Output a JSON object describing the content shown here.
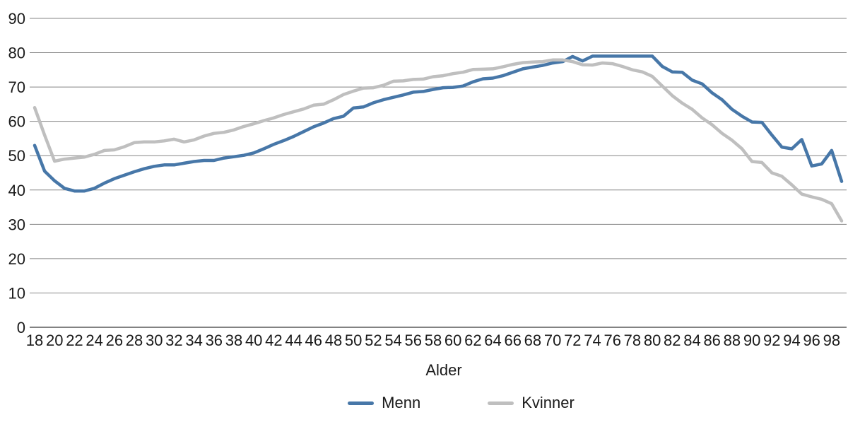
{
  "chart_data": {
    "type": "line",
    "title": "",
    "xlabel": "Alder",
    "ylabel": "",
    "ylim": [
      0,
      90
    ],
    "grid": true,
    "legend_position": "bottom",
    "grid_color": "#858585",
    "axis_color": "#595959",
    "text_color": "#1a1a1a",
    "y_ticks": [
      0,
      10,
      20,
      30,
      40,
      50,
      60,
      70,
      80,
      90
    ],
    "x_ticks": [
      18,
      20,
      22,
      24,
      26,
      28,
      30,
      32,
      34,
      36,
      38,
      40,
      42,
      44,
      46,
      48,
      50,
      52,
      54,
      56,
      58,
      60,
      62,
      64,
      66,
      68,
      70,
      72,
      74,
      76,
      78,
      80,
      82,
      84,
      86,
      88,
      90,
      92,
      94,
      96,
      98
    ],
    "ages": [
      18,
      19,
      20,
      21,
      22,
      23,
      24,
      25,
      26,
      27,
      28,
      29,
      30,
      31,
      32,
      33,
      34,
      35,
      36,
      37,
      38,
      39,
      40,
      41,
      42,
      43,
      44,
      45,
      46,
      47,
      48,
      49,
      50,
      51,
      52,
      53,
      54,
      55,
      56,
      57,
      58,
      59,
      60,
      61,
      62,
      63,
      64,
      65,
      66,
      67,
      68,
      69,
      70,
      71,
      72,
      73,
      74,
      75,
      76,
      77,
      78,
      79,
      80,
      81,
      82,
      83,
      84,
      85,
      86,
      87,
      88,
      89,
      90,
      91,
      92,
      93,
      94,
      95,
      96,
      97,
      98,
      99
    ],
    "series": [
      {
        "name": "Menn",
        "color": "#4777A8",
        "values": [
          53,
          45.5,
          42.7,
          40.5,
          39.7,
          39.7,
          40.5,
          42,
          43.3,
          44.3,
          45.3,
          46.2,
          46.9,
          47.3,
          47.3,
          47.8,
          48.3,
          48.6,
          48.6,
          49.3,
          49.7,
          50.1,
          50.8,
          52,
          53.3,
          54.4,
          55.6,
          57,
          58.4,
          59.5,
          60.8,
          61.5,
          63.9,
          64.2,
          65.4,
          66.3,
          67,
          67.7,
          68.5,
          68.7,
          69.3,
          69.8,
          69.9,
          70.3,
          71.5,
          72.4,
          72.6,
          73.3,
          74.3,
          75.3,
          75.8,
          76.3,
          77,
          77.4,
          78.9,
          77.6,
          79,
          79,
          79,
          79,
          79,
          79,
          79,
          76,
          74.4,
          74.3,
          72,
          70.9,
          68.3,
          66.3,
          63.5,
          61.5,
          59.8,
          59.7,
          56,
          52.5,
          52,
          54.7,
          47,
          47.6,
          51.5,
          42.5
        ]
      },
      {
        "name": "Kvinner",
        "color": "#BFBFBF",
        "values": [
          64,
          56,
          48.4,
          49,
          49.3,
          49.6,
          50.4,
          51.5,
          51.7,
          52.6,
          53.8,
          54,
          54,
          54.3,
          54.8,
          54,
          54.6,
          55.7,
          56.5,
          56.8,
          57.5,
          58.5,
          59.3,
          60.2,
          61,
          62,
          62.8,
          63.6,
          64.7,
          65,
          66.3,
          67.8,
          68.8,
          69.7,
          69.8,
          70.5,
          71.7,
          71.8,
          72.2,
          72.3,
          73,
          73.3,
          73.9,
          74.3,
          75.1,
          75.2,
          75.3,
          75.9,
          76.6,
          77.1,
          77.3,
          77.4,
          77.9,
          77.9,
          77.4,
          76.5,
          76.4,
          77,
          76.8,
          76,
          75,
          74.4,
          73.1,
          70.3,
          67.5,
          65.3,
          63.5,
          61,
          59,
          56.5,
          54.5,
          52,
          48.3,
          48,
          45,
          44,
          41.5,
          38.8,
          38,
          37.3,
          36,
          31
        ]
      }
    ]
  }
}
